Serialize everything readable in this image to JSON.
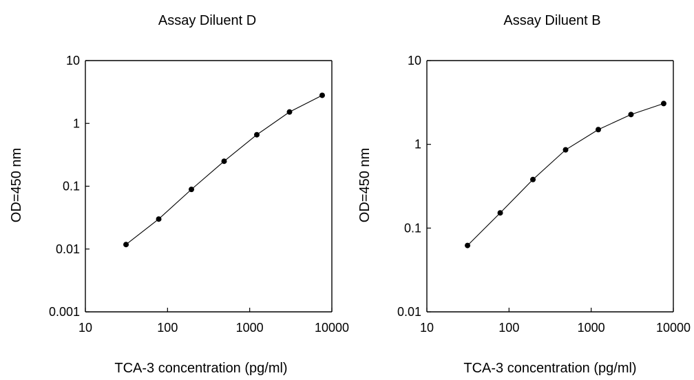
{
  "chart_data": [
    {
      "type": "scatter",
      "title": "Assay Diluent D",
      "xlabel": "TCA-3 concentration (pg/ml)",
      "ylabel": "OD=450 nm",
      "x_scale": "log",
      "y_scale": "log",
      "xlim": [
        10,
        10000
      ],
      "ylim": [
        0.001,
        10
      ],
      "x_ticks": [
        "10",
        "100",
        "1000",
        "10000"
      ],
      "y_ticks": [
        "10",
        "1",
        "0.1",
        "0.01",
        "0.001"
      ],
      "grid": false,
      "series": [
        {
          "x": [
            31.25,
            78.125,
            195.3125,
            488.28125,
            1220.703125,
            3051.7578125,
            7629.39453125
          ],
          "y": [
            0.0118,
            0.03,
            0.089,
            0.25,
            0.66,
            1.52,
            2.8
          ]
        }
      ]
    },
    {
      "type": "scatter",
      "title": "Assay Diluent B",
      "xlabel": "TCA-3 concentration (pg/ml)",
      "ylabel": "OD=450 nm",
      "x_scale": "log",
      "y_scale": "log",
      "xlim": [
        10,
        10000
      ],
      "ylim": [
        0.01,
        10
      ],
      "x_ticks": [
        "10",
        "100",
        "1000",
        "10000"
      ],
      "y_ticks": [
        "10",
        "1",
        "0.1",
        "0.01"
      ],
      "grid": false,
      "series": [
        {
          "x": [
            31.25,
            78.125,
            195.3125,
            488.28125,
            1220.703125,
            3051.7578125,
            7629.39453125
          ],
          "y": [
            0.062,
            0.152,
            0.38,
            0.86,
            1.5,
            2.27,
            3.07
          ]
        }
      ]
    }
  ]
}
